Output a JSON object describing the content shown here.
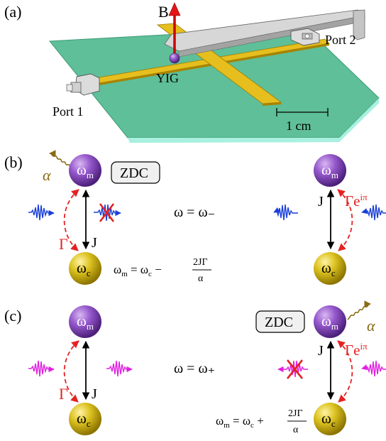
{
  "panels": {
    "a": {
      "label": "(a)",
      "field_label": "B",
      "sample_label": "YIG",
      "port1_label": "Port 1",
      "port2_label": "Port 2",
      "scale_label": "1 cm"
    },
    "b": {
      "label": "(b)",
      "zdc_label": "ZDC",
      "alpha_label": "α",
      "gamma_label": "Γ",
      "coupling_label": "J",
      "coupling_label_right": "J",
      "gamma_phase_label": "Γe",
      "gamma_phase_sup": "iπ",
      "condition_label": "ω = ω₋",
      "relation_lhs": "ω",
      "relation_lhs_sub": "m",
      "relation_mid": " = ω",
      "relation_mid_sub": "c",
      "relation_sign": " − ",
      "frac_num": "2JΓ",
      "frac_den": "α"
    },
    "c": {
      "label": "(c)",
      "zdc_label": "ZDC",
      "alpha_label": "α",
      "gamma_label": "Γ",
      "coupling_label": "J",
      "coupling_label_right": "J",
      "gamma_phase_label": "Γe",
      "gamma_phase_sup": "iπ",
      "condition_label": "ω = ω₊",
      "relation_lhs": "ω",
      "relation_lhs_sub": "m",
      "relation_mid": " = ω",
      "relation_mid_sub": "c",
      "relation_sign": " + ",
      "frac_num": "2JΓ",
      "frac_den": "α"
    }
  },
  "spheres": {
    "magnon_main": "ω",
    "magnon_sub": "m",
    "cavity_main": "ω",
    "cavity_sub": "c"
  },
  "colors": {
    "magnon": "#8a4fc0",
    "cavity": "#d4ba1c",
    "stripline": "#d9b21a",
    "substrate": "#5fbf98",
    "dissipation": "#e52222",
    "wave_b": "#1a3fd6",
    "wave_c": "#e020e0",
    "alpha_wave": "#8a6a14"
  }
}
